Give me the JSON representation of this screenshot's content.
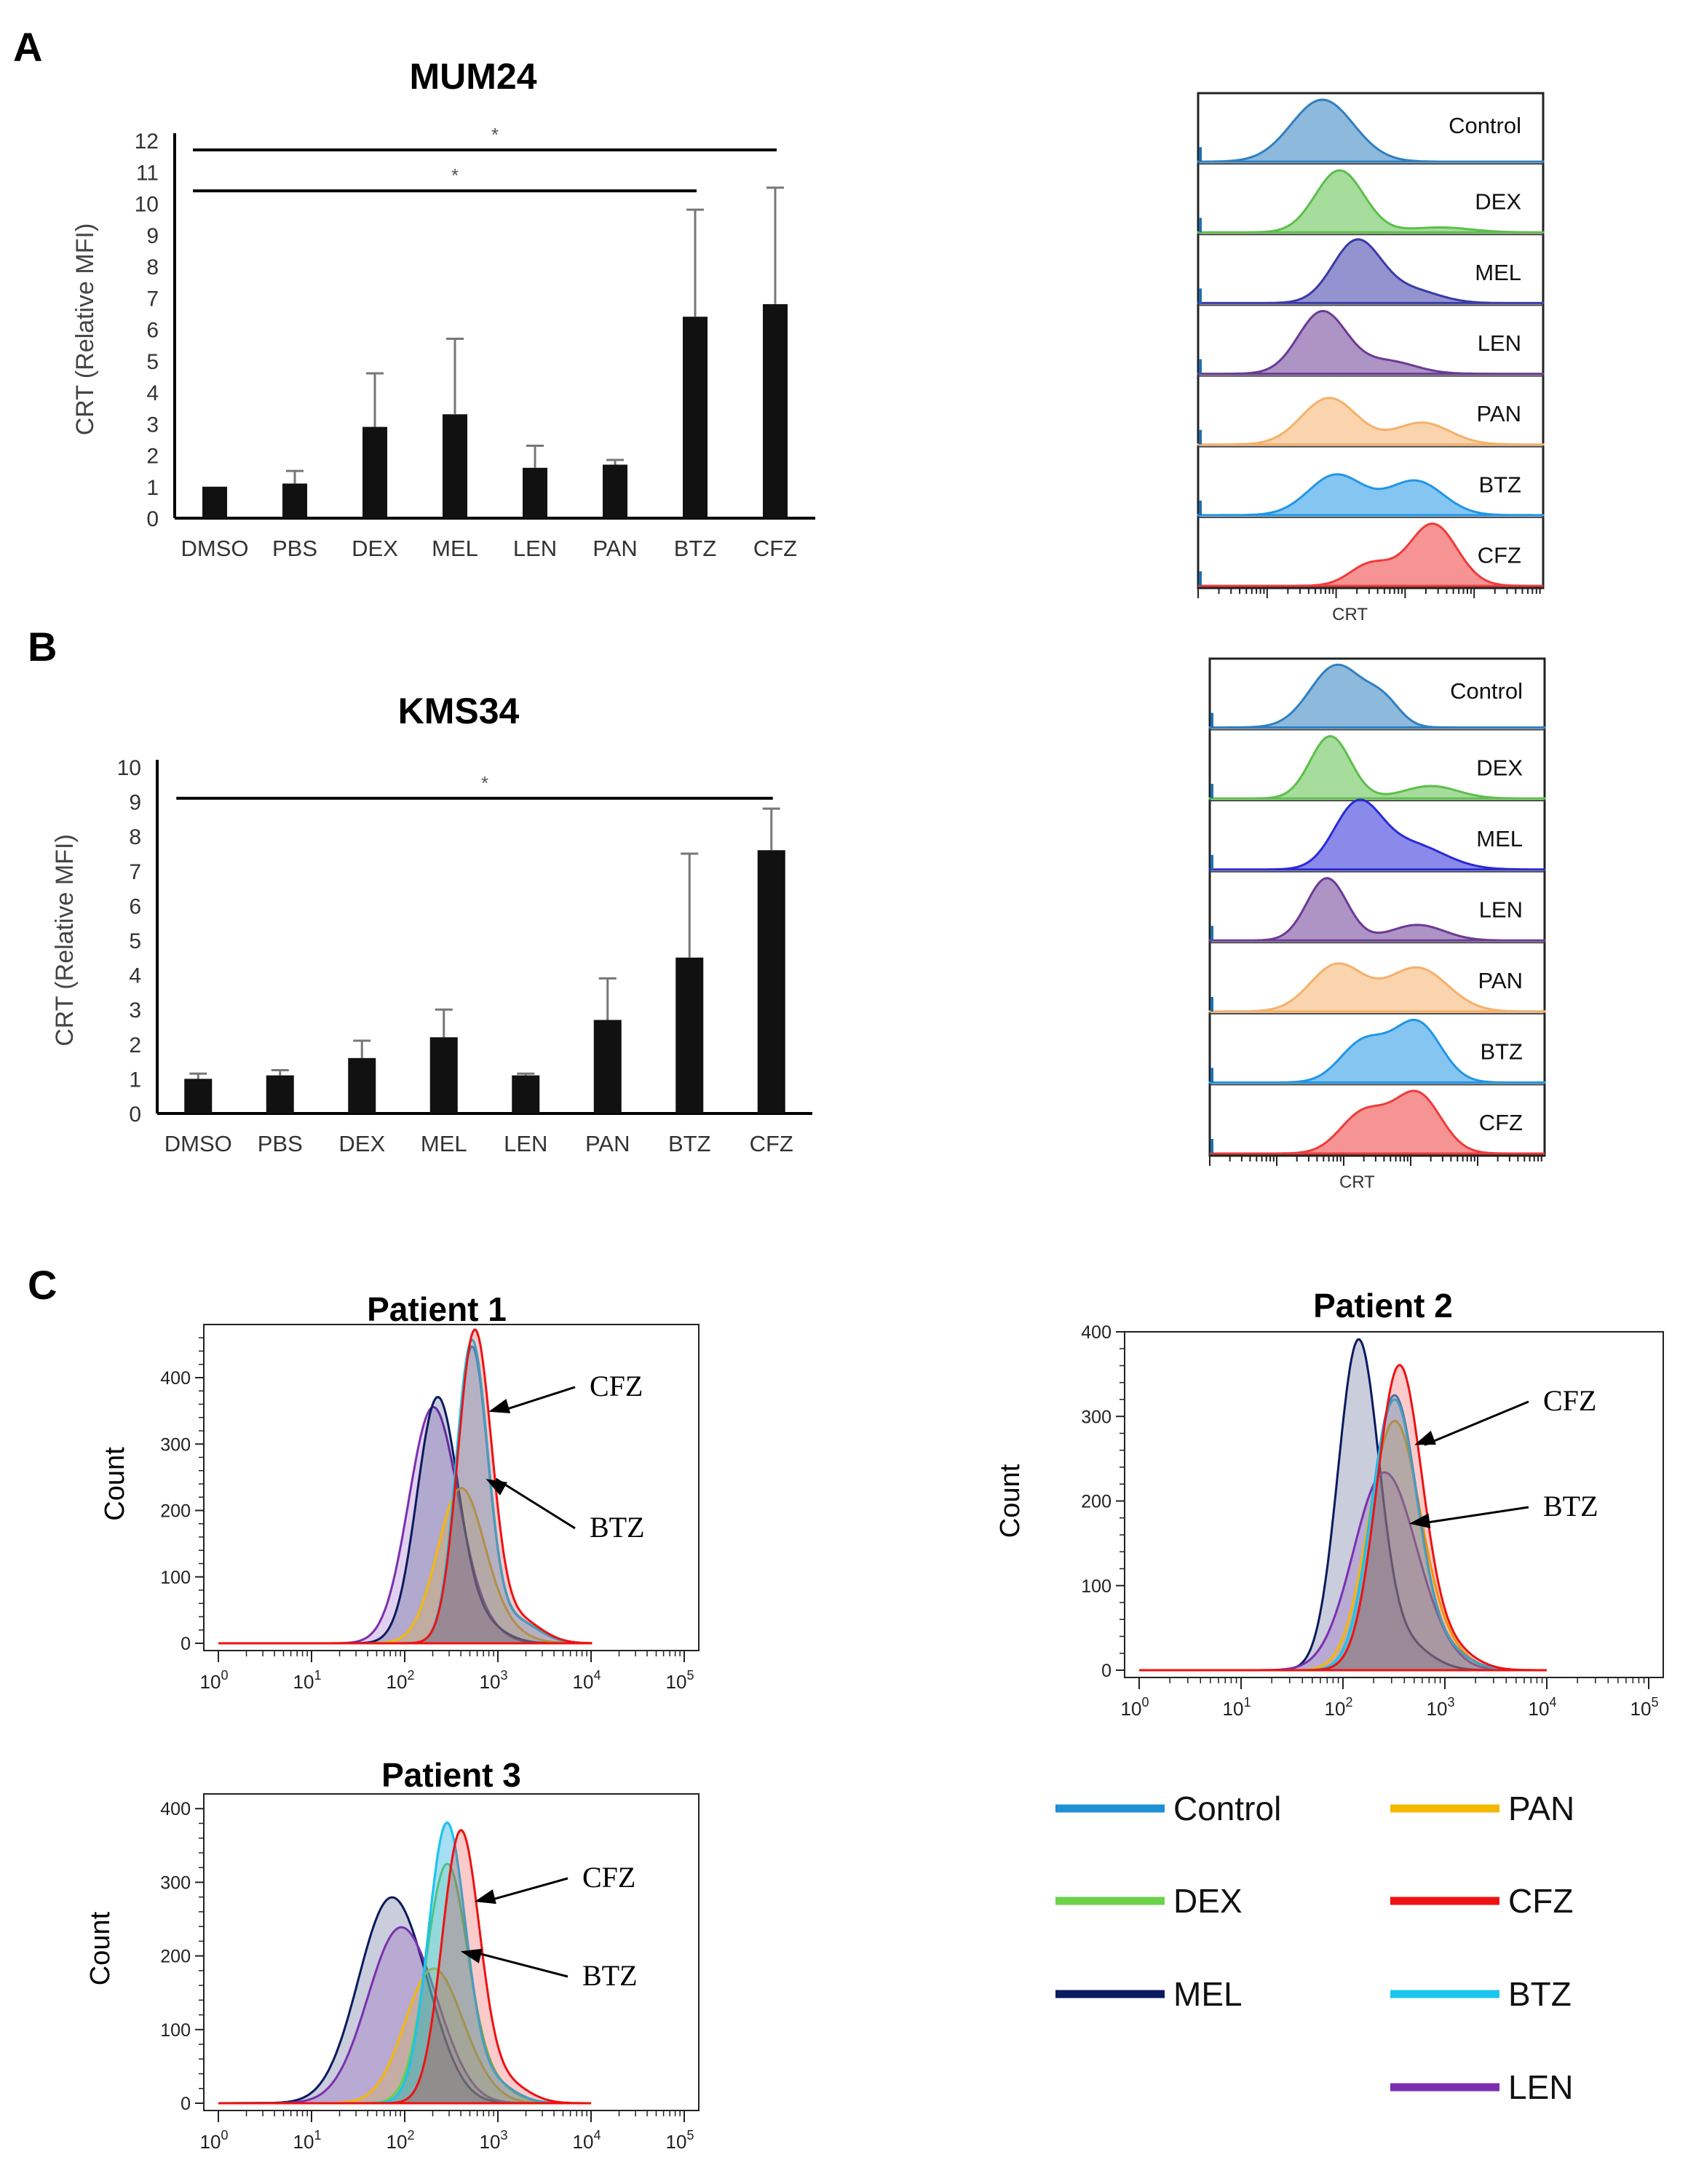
{
  "panels": {
    "a": "A",
    "b": "B",
    "c": "C"
  },
  "colors": {
    "Control": "#1f8fd6",
    "DEX": "#6cd24a",
    "MEL": "#0a1a5e",
    "LEN": "#7b2fb0",
    "PAN": "#f5b800",
    "CFZ": "#ee1111",
    "BTZ": "#1ac6ee"
  },
  "chart_data": [
    {
      "type": "bar",
      "panel": "A",
      "title": "MUM24",
      "ylabel": "CRT (Relative MFI)",
      "ylim": [
        0,
        12
      ],
      "yticks": [
        "0",
        "1",
        "2",
        "3",
        "4",
        "5",
        "6",
        "7",
        "8",
        "9",
        "10",
        "11",
        "12"
      ],
      "categories": [
        "DMSO",
        "PBS",
        "DEX",
        "MEL",
        "LEN",
        "PAN",
        "BTZ",
        "CFZ"
      ],
      "values": [
        1.0,
        1.1,
        2.9,
        3.3,
        1.6,
        1.7,
        6.4,
        6.8
      ],
      "errors": [
        0.0,
        0.4,
        1.7,
        2.4,
        0.7,
        0.15,
        3.4,
        3.7
      ],
      "significance": [
        {
          "from": "DMSO",
          "to": "CFZ",
          "label": "*",
          "level": 11.7
        },
        {
          "from": "DMSO",
          "to": "BTZ",
          "label": "*",
          "level": 10.4
        }
      ]
    },
    {
      "type": "histogram-stack",
      "panel": "A",
      "xlabel": "CRT",
      "rows": [
        {
          "label": "Control",
          "color": "#2f7fc1",
          "peaks": [
            [
              0.36,
              0.09,
              1.0
            ]
          ]
        },
        {
          "label": "DEX",
          "color": "#5cbf4a",
          "peaks": [
            [
              0.41,
              0.07,
              1.0
            ],
            [
              0.7,
              0.09,
              0.08
            ]
          ]
        },
        {
          "label": "MEL",
          "color": "#3a3aa8",
          "peaks": [
            [
              0.46,
              0.07,
              1.0
            ],
            [
              0.62,
              0.08,
              0.2
            ]
          ]
        },
        {
          "label": "LEN",
          "color": "#6b3a95",
          "peaks": [
            [
              0.36,
              0.07,
              1.0
            ],
            [
              0.55,
              0.08,
              0.2
            ]
          ]
        },
        {
          "label": "PAN",
          "color": "#f5b06a",
          "peaks": [
            [
              0.38,
              0.08,
              0.75
            ],
            [
              0.65,
              0.08,
              0.35
            ]
          ]
        },
        {
          "label": "BTZ",
          "color": "#2196e6",
          "peaks": [
            [
              0.4,
              0.08,
              0.65
            ],
            [
              0.63,
              0.08,
              0.55
            ]
          ]
        },
        {
          "label": "CFZ",
          "color": "#ee3b3b",
          "peaks": [
            [
              0.5,
              0.06,
              0.35
            ],
            [
              0.68,
              0.07,
              1.0
            ]
          ]
        }
      ]
    },
    {
      "type": "bar",
      "panel": "B",
      "title": "KMS34",
      "ylabel": "CRT (Relative MFI)",
      "ylim": [
        0,
        10
      ],
      "yticks": [
        "0",
        "1",
        "2",
        "3",
        "4",
        "5",
        "6",
        "7",
        "8",
        "9",
        "10"
      ],
      "categories": [
        "DMSO",
        "PBS",
        "DEX",
        "MEL",
        "LEN",
        "PAN",
        "BTZ",
        "CFZ"
      ],
      "values": [
        1.0,
        1.1,
        1.6,
        2.2,
        1.1,
        2.7,
        4.5,
        7.6
      ],
      "errors": [
        0.15,
        0.15,
        0.5,
        0.8,
        0.05,
        1.2,
        3.0,
        1.2
      ],
      "significance": [
        {
          "from": "DMSO",
          "to": "CFZ",
          "label": "*",
          "level": 9.1
        }
      ]
    },
    {
      "type": "histogram-stack",
      "panel": "B",
      "xlabel": "CRT",
      "rows": [
        {
          "label": "Control",
          "color": "#2f7fc1",
          "peaks": [
            [
              0.38,
              0.08,
              1.0
            ],
            [
              0.52,
              0.05,
              0.35
            ]
          ]
        },
        {
          "label": "DEX",
          "color": "#5cbf4a",
          "peaks": [
            [
              0.36,
              0.06,
              1.0
            ],
            [
              0.66,
              0.08,
              0.2
            ]
          ]
        },
        {
          "label": "MEL",
          "color": "#2a2ad8",
          "peaks": [
            [
              0.44,
              0.07,
              1.0
            ],
            [
              0.6,
              0.1,
              0.4
            ]
          ]
        },
        {
          "label": "LEN",
          "color": "#6b3a95",
          "peaks": [
            [
              0.35,
              0.06,
              1.0
            ],
            [
              0.62,
              0.08,
              0.25
            ]
          ]
        },
        {
          "label": "PAN",
          "color": "#f5b06a",
          "peaks": [
            [
              0.38,
              0.08,
              0.75
            ],
            [
              0.62,
              0.09,
              0.7
            ]
          ]
        },
        {
          "label": "BTZ",
          "color": "#2196e6",
          "peaks": [
            [
              0.46,
              0.07,
              0.65
            ],
            [
              0.62,
              0.07,
              0.95
            ]
          ]
        },
        {
          "label": "CFZ",
          "color": "#ee3b3b",
          "peaks": [
            [
              0.46,
              0.07,
              0.65
            ],
            [
              0.62,
              0.07,
              0.95
            ]
          ]
        }
      ]
    },
    {
      "type": "histogram-overlay",
      "panel": "C",
      "title": "Patient 1",
      "ylabel": "Count",
      "ylim": [
        0,
        480
      ],
      "yticks": [
        0,
        100,
        200,
        300,
        400
      ],
      "xticks": [
        "10",
        "10",
        "10",
        "10",
        "10",
        "10"
      ],
      "xtick_exps": [
        "0",
        "1",
        "2",
        "3",
        "4",
        "5"
      ],
      "series": [
        {
          "name": "LEN",
          "mode": 2.3,
          "sigma": 0.26,
          "peak": 350
        },
        {
          "name": "MEL",
          "mode": 2.35,
          "sigma": 0.22,
          "peak": 365
        },
        {
          "name": "PAN",
          "mode": 2.6,
          "sigma": 0.25,
          "peak": 230
        },
        {
          "name": "Control",
          "mode": 2.72,
          "sigma": 0.17,
          "peak": 440
        },
        {
          "name": "BTZ",
          "mode": 2.72,
          "sigma": 0.17,
          "peak": 450
        },
        {
          "name": "CFZ",
          "mode": 2.75,
          "sigma": 0.18,
          "peak": 465
        }
      ],
      "annotations": [
        {
          "text": "CFZ",
          "target": "CFZ"
        },
        {
          "text": "BTZ",
          "target": "BTZ"
        }
      ]
    },
    {
      "type": "histogram-overlay",
      "panel": "C",
      "title": "Patient 2",
      "ylabel": "Count",
      "ylim": [
        0,
        400
      ],
      "yticks": [
        0,
        100,
        200,
        300,
        400
      ],
      "xticks": [
        "10",
        "10",
        "10",
        "10",
        "10",
        "10"
      ],
      "xtick_exps": [
        "0",
        "1",
        "2",
        "3",
        "4",
        "5"
      ],
      "series": [
        {
          "name": "MEL",
          "mode": 2.15,
          "sigma": 0.2,
          "peak": 385
        },
        {
          "name": "LEN",
          "mode": 2.4,
          "sigma": 0.3,
          "peak": 230
        },
        {
          "name": "PAN",
          "mode": 2.5,
          "sigma": 0.25,
          "peak": 290
        },
        {
          "name": "Control",
          "mode": 2.5,
          "sigma": 0.22,
          "peak": 320
        },
        {
          "name": "BTZ",
          "mode": 2.5,
          "sigma": 0.22,
          "peak": 315
        },
        {
          "name": "CFZ",
          "mode": 2.55,
          "sigma": 0.22,
          "peak": 355
        }
      ],
      "annotations": [
        {
          "text": "CFZ",
          "target": "CFZ"
        },
        {
          "text": "BTZ",
          "target": "BTZ"
        }
      ]
    },
    {
      "type": "histogram-overlay",
      "panel": "C",
      "title": "Patient 3",
      "ylabel": "Count",
      "ylim": [
        0,
        420
      ],
      "yticks": [
        0,
        100,
        200,
        300,
        400
      ],
      "xticks": [
        "10",
        "10",
        "10",
        "10",
        "10",
        "10"
      ],
      "xtick_exps": [
        "0",
        "1",
        "2",
        "3",
        "4",
        "5"
      ],
      "series": [
        {
          "name": "MEL",
          "mode": 1.85,
          "sigma": 0.35,
          "peak": 275
        },
        {
          "name": "LEN",
          "mode": 1.95,
          "sigma": 0.35,
          "peak": 235
        },
        {
          "name": "PAN",
          "mode": 2.3,
          "sigma": 0.3,
          "peak": 180
        },
        {
          "name": "DEX",
          "mode": 2.45,
          "sigma": 0.22,
          "peak": 320
        },
        {
          "name": "Control",
          "mode": 2.45,
          "sigma": 0.2,
          "peak": 375
        },
        {
          "name": "BTZ",
          "mode": 2.45,
          "sigma": 0.2,
          "peak": 375
        },
        {
          "name": "CFZ",
          "mode": 2.6,
          "sigma": 0.2,
          "peak": 365
        }
      ],
      "annotations": [
        {
          "text": "CFZ",
          "target": "CFZ"
        },
        {
          "text": "BTZ",
          "target": "BTZ"
        }
      ]
    }
  ],
  "legend": {
    "items": [
      {
        "label": "Control",
        "color": "#1f8fd6"
      },
      {
        "label": "PAN",
        "color": "#f5b800"
      },
      {
        "label": "DEX",
        "color": "#6cd24a"
      },
      {
        "label": "CFZ",
        "color": "#ee1111"
      },
      {
        "label": "MEL",
        "color": "#0a1a5e"
      },
      {
        "label": "BTZ",
        "color": "#1ac6ee"
      },
      {
        "label": "LEN",
        "color": "#7b2fb0"
      }
    ]
  }
}
